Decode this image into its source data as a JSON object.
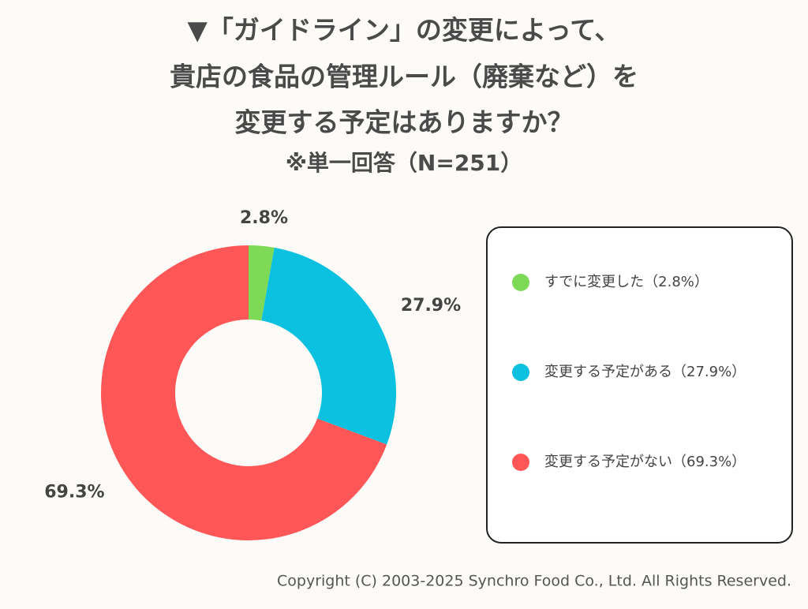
{
  "chart_data": {
    "type": "pie",
    "donut": true,
    "title": [
      "▼「ガイドライン」の変更によって、",
      "貴店の食品の管理ルール（廃棄など）を",
      "変更する予定はありますか？"
    ],
    "subtitle": "※単一回答（N=251）",
    "categories": [
      "すでに変更した（2.8%）",
      "変更する予定がある（27.9%）",
      "変更する予定がない（69.3%）"
    ],
    "values": [
      2.8,
      27.9,
      69.3
    ],
    "value_labels": [
      "2.8%",
      "27.9%",
      "69.3%"
    ],
    "colors": [
      "#7ed957",
      "#0cc0df",
      "#ff5757"
    ],
    "legend": "right"
  },
  "footer": "Copyright (C) 2003-2025  Synchro Food Co., Ltd. All Rights Reserved."
}
